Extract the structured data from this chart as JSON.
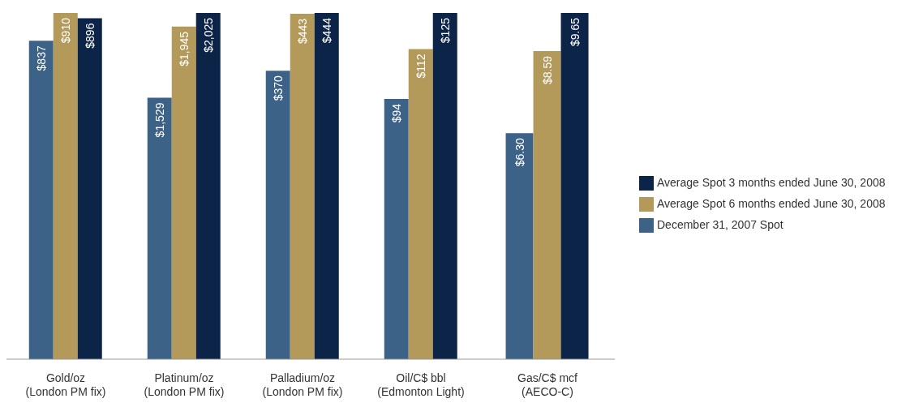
{
  "chart_data": [
    {
      "type": "bar",
      "categories": [
        "Gold/oz\n(London PM fix)"
      ],
      "series": [
        {
          "color": "#3d6287",
          "values": [
            837
          ],
          "value_labels": [
            "$837"
          ]
        },
        {
          "color": "#b39a5b",
          "values": [
            910
          ],
          "value_labels": [
            "$910"
          ]
        },
        {
          "color": "#0c2447",
          "values": [
            896
          ],
          "value_labels": [
            "$896"
          ]
        }
      ]
    },
    {
      "type": "bar",
      "categories": [
        "Platinum/oz\n(London PM fix)"
      ],
      "series": [
        {
          "color": "#3d6287",
          "values": [
            1529
          ],
          "value_labels": [
            "$1,529"
          ]
        },
        {
          "color": "#b39a5b",
          "values": [
            1945
          ],
          "value_labels": [
            "$1,945"
          ]
        },
        {
          "color": "#0c2447",
          "values": [
            2025
          ],
          "value_labels": [
            "$2,025"
          ]
        }
      ]
    },
    {
      "type": "bar",
      "categories": [
        "Palladium/oz\n(London PM fix)"
      ],
      "series": [
        {
          "color": "#3d6287",
          "values": [
            370
          ],
          "value_labels": [
            "$370"
          ]
        },
        {
          "color": "#b39a5b",
          "values": [
            443
          ],
          "value_labels": [
            "$443"
          ]
        },
        {
          "color": "#0c2447",
          "values": [
            444
          ],
          "value_labels": [
            "$444"
          ]
        }
      ]
    },
    {
      "type": "bar",
      "categories": [
        "Oil/C$ bbl\n(Edmonton Light)"
      ],
      "series": [
        {
          "color": "#3d6287",
          "values": [
            94
          ],
          "value_labels": [
            "$94"
          ]
        },
        {
          "color": "#b39a5b",
          "values": [
            112
          ],
          "value_labels": [
            "$112"
          ]
        },
        {
          "color": "#0c2447",
          "values": [
            125
          ],
          "value_labels": [
            "$125"
          ]
        }
      ]
    },
    {
      "type": "bar",
      "categories": [
        "Gas/C$ mcf\n(AECO-C)"
      ],
      "legend": "right",
      "series": [
        {
          "name": "December 31, 2007 Spot",
          "color": "#3d6287",
          "values": [
            6.3
          ],
          "value_labels": [
            "$6.30"
          ]
        },
        {
          "name": "Average Spot 6 months ended June 30, 2008",
          "color": "#b39a5b",
          "values": [
            8.59
          ],
          "value_labels": [
            "$8.59"
          ]
        },
        {
          "name": "Average Spot 3 months ended June 30, 2008",
          "color": "#0c2447",
          "values": [
            9.65
          ],
          "value_labels": [
            "$9.65"
          ]
        }
      ]
    }
  ]
}
